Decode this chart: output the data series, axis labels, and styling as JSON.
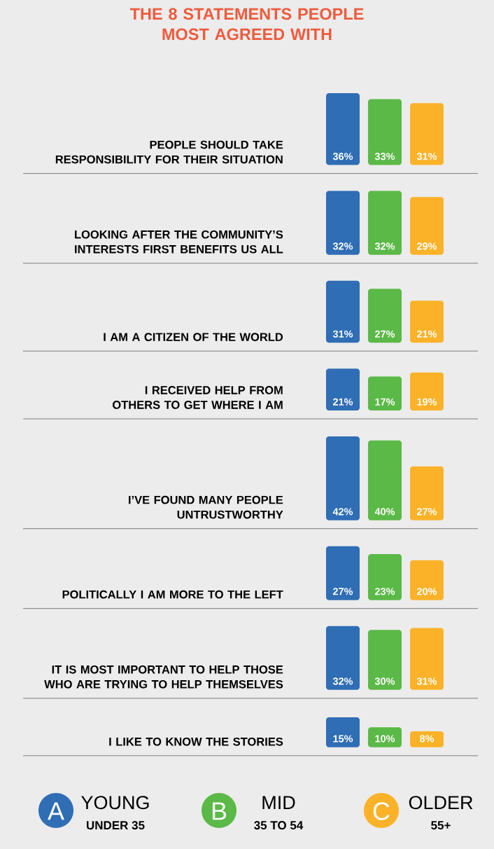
{
  "chart_data": [
    {
      "type": "bar",
      "title": "THE 8 STATEMENTS PEOPLE MOST AGREED WITH",
      "ylabel": "PEOPLE SHOULD TAKE RESPONSIBILITY FOR THEIR SITUATION",
      "categories": [
        null
      ],
      "series": [
        {
          "color": "#2f6db5",
          "values": [
            36
          ],
          "value_labels": [
            "36%"
          ]
        },
        {
          "color": "#5bb947",
          "values": [
            33
          ],
          "value_labels": [
            "33%"
          ]
        },
        {
          "color": "#fbb228",
          "values": [
            31
          ],
          "value_labels": [
            "31%"
          ]
        }
      ]
    },
    {
      "type": "bar",
      "ylabel": "LOOKING AFTER THE COMMUNITY’S INTERESTS FIRST BENEFITS US ALL",
      "categories": [
        null
      ],
      "series": [
        {
          "color": "#2f6db5",
          "values": [
            32
          ],
          "value_labels": [
            "32%"
          ]
        },
        {
          "color": "#5bb947",
          "values": [
            32
          ],
          "value_labels": [
            "32%"
          ]
        },
        {
          "color": "#fbb228",
          "values": [
            29
          ],
          "value_labels": [
            "29%"
          ]
        }
      ]
    },
    {
      "type": "bar",
      "ylabel": "I AM A CITIZEN OF THE WORLD",
      "categories": [
        null
      ],
      "series": [
        {
          "color": "#2f6db5",
          "values": [
            31
          ],
          "value_labels": [
            "31%"
          ]
        },
        {
          "color": "#5bb947",
          "values": [
            27
          ],
          "value_labels": [
            "27%"
          ]
        },
        {
          "color": "#fbb228",
          "values": [
            21
          ],
          "value_labels": [
            "21%"
          ]
        }
      ]
    },
    {
      "type": "bar",
      "ylabel": "I RECEIVED HELP FROM OTHERS TO GET WHERE I AM",
      "categories": [
        null
      ],
      "series": [
        {
          "color": "#2f6db5",
          "values": [
            21
          ],
          "value_labels": [
            "21%"
          ]
        },
        {
          "color": "#5bb947",
          "values": [
            17
          ],
          "value_labels": [
            "17%"
          ]
        },
        {
          "color": "#fbb228",
          "values": [
            19
          ],
          "value_labels": [
            "19%"
          ]
        }
      ]
    },
    {
      "type": "bar",
      "ylabel": "I’VE FOUND MANY PEOPLE UNTRUSTWORTHY",
      "categories": [
        null
      ],
      "series": [
        {
          "color": "#2f6db5",
          "values": [
            42
          ],
          "value_labels": [
            "42%"
          ]
        },
        {
          "color": "#5bb947",
          "values": [
            40
          ],
          "value_labels": [
            "40%"
          ]
        },
        {
          "color": "#fbb228",
          "values": [
            27
          ],
          "value_labels": [
            "27%"
          ]
        }
      ]
    },
    {
      "type": "bar",
      "ylabel": "POLITICALLY I AM MORE TO THE LEFT",
      "categories": [
        null
      ],
      "series": [
        {
          "color": "#2f6db5",
          "values": [
            27
          ],
          "value_labels": [
            "27%"
          ]
        },
        {
          "color": "#5bb947",
          "values": [
            23
          ],
          "value_labels": [
            "23%"
          ]
        },
        {
          "color": "#fbb228",
          "values": [
            20
          ],
          "value_labels": [
            "20%"
          ]
        }
      ]
    },
    {
      "type": "bar",
      "ylabel": "IT IS MOST IMPORTANT TO HELP THOSE WHO ARE TRYING TO HELP THEMSELVES",
      "categories": [
        null
      ],
      "series": [
        {
          "color": "#2f6db5",
          "values": [
            32
          ],
          "value_labels": [
            "32%"
          ]
        },
        {
          "color": "#5bb947",
          "values": [
            30
          ],
          "value_labels": [
            "30%"
          ]
        },
        {
          "color": "#fbb228",
          "values": [
            31
          ],
          "value_labels": [
            "31%"
          ]
        }
      ]
    },
    {
      "type": "bar",
      "ylabel": "I LIKE TO KNOW THE STORIES",
      "categories": [
        null
      ],
      "series": [
        {
          "name": "YOUNG",
          "color": "#2f6db5",
          "values": [
            15
          ],
          "value_labels": [
            "15%"
          ]
        },
        {
          "name": "MID",
          "color": "#5bb947",
          "values": [
            10
          ],
          "value_labels": [
            "10%"
          ]
        },
        {
          "name": "OLDER",
          "color": "#fbb228",
          "values": [
            8
          ],
          "value_labels": [
            "8%"
          ]
        }
      ],
      "annotations": [
        "A",
        "UNDER 35",
        "B",
        "35 TO 54",
        "C",
        "55+"
      ],
      "legend": "bottom"
    }
  ]
}
